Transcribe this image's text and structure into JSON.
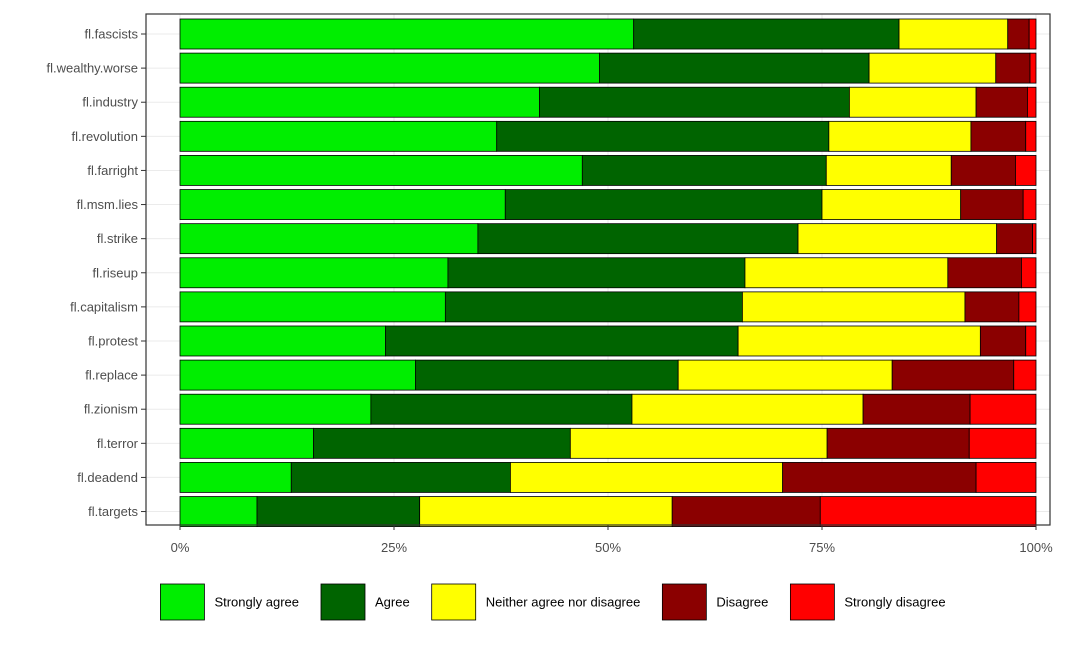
{
  "chart_data": {
    "type": "bar",
    "orientation": "horizontal",
    "stacked": true,
    "normalized": true,
    "title": "",
    "xlabel": "",
    "ylabel": "",
    "xlim": [
      0,
      100
    ],
    "x_ticks": [
      "0%",
      "25%",
      "50%",
      "75%",
      "100%"
    ],
    "x_tick_values": [
      0,
      25,
      50,
      75,
      100
    ],
    "grid": true,
    "legend_position": "bottom",
    "categories": [
      "fl.fascists",
      "fl.wealthy.worse",
      "fl.industry",
      "fl.revolution",
      "fl.farright",
      "fl.msm.lies",
      "fl.strike",
      "fl.riseup",
      "fl.capitalism",
      "fl.protest",
      "fl.replace",
      "fl.zionism",
      "fl.terror",
      "fl.deadend",
      "fl.targets"
    ],
    "series": [
      {
        "name": "Strongly agree",
        "color": "#00ee00",
        "values": [
          53.0,
          49.0,
          42.0,
          37.0,
          47.0,
          38.0,
          34.8,
          31.3,
          31.0,
          24.0,
          27.5,
          22.3,
          15.6,
          13.0,
          9.0
        ]
      },
      {
        "name": "Agree",
        "color": "#006400",
        "values": [
          31.0,
          31.5,
          36.2,
          38.8,
          28.5,
          37.0,
          37.4,
          34.7,
          34.7,
          41.2,
          30.7,
          30.5,
          30.0,
          25.6,
          19.0
        ]
      },
      {
        "name": "Neither agree nor disagree",
        "color": "#ffff00",
        "values": [
          12.7,
          14.8,
          14.8,
          16.6,
          14.6,
          16.2,
          23.2,
          23.7,
          26.0,
          28.3,
          25.0,
          27.0,
          30.0,
          31.8,
          29.5
        ]
      },
      {
        "name": "Disagree",
        "color": "#8b0000",
        "values": [
          2.5,
          4.0,
          6.0,
          6.4,
          7.5,
          7.3,
          4.2,
          8.6,
          6.3,
          5.3,
          14.2,
          12.5,
          16.6,
          22.6,
          17.3
        ]
      },
      {
        "name": "Strongly disagree",
        "color": "#ff0000",
        "values": [
          0.8,
          0.7,
          1.0,
          1.2,
          2.4,
          1.5,
          0.4,
          1.7,
          2.0,
          1.2,
          2.6,
          7.7,
          7.8,
          7.0,
          25.2
        ]
      }
    ]
  }
}
